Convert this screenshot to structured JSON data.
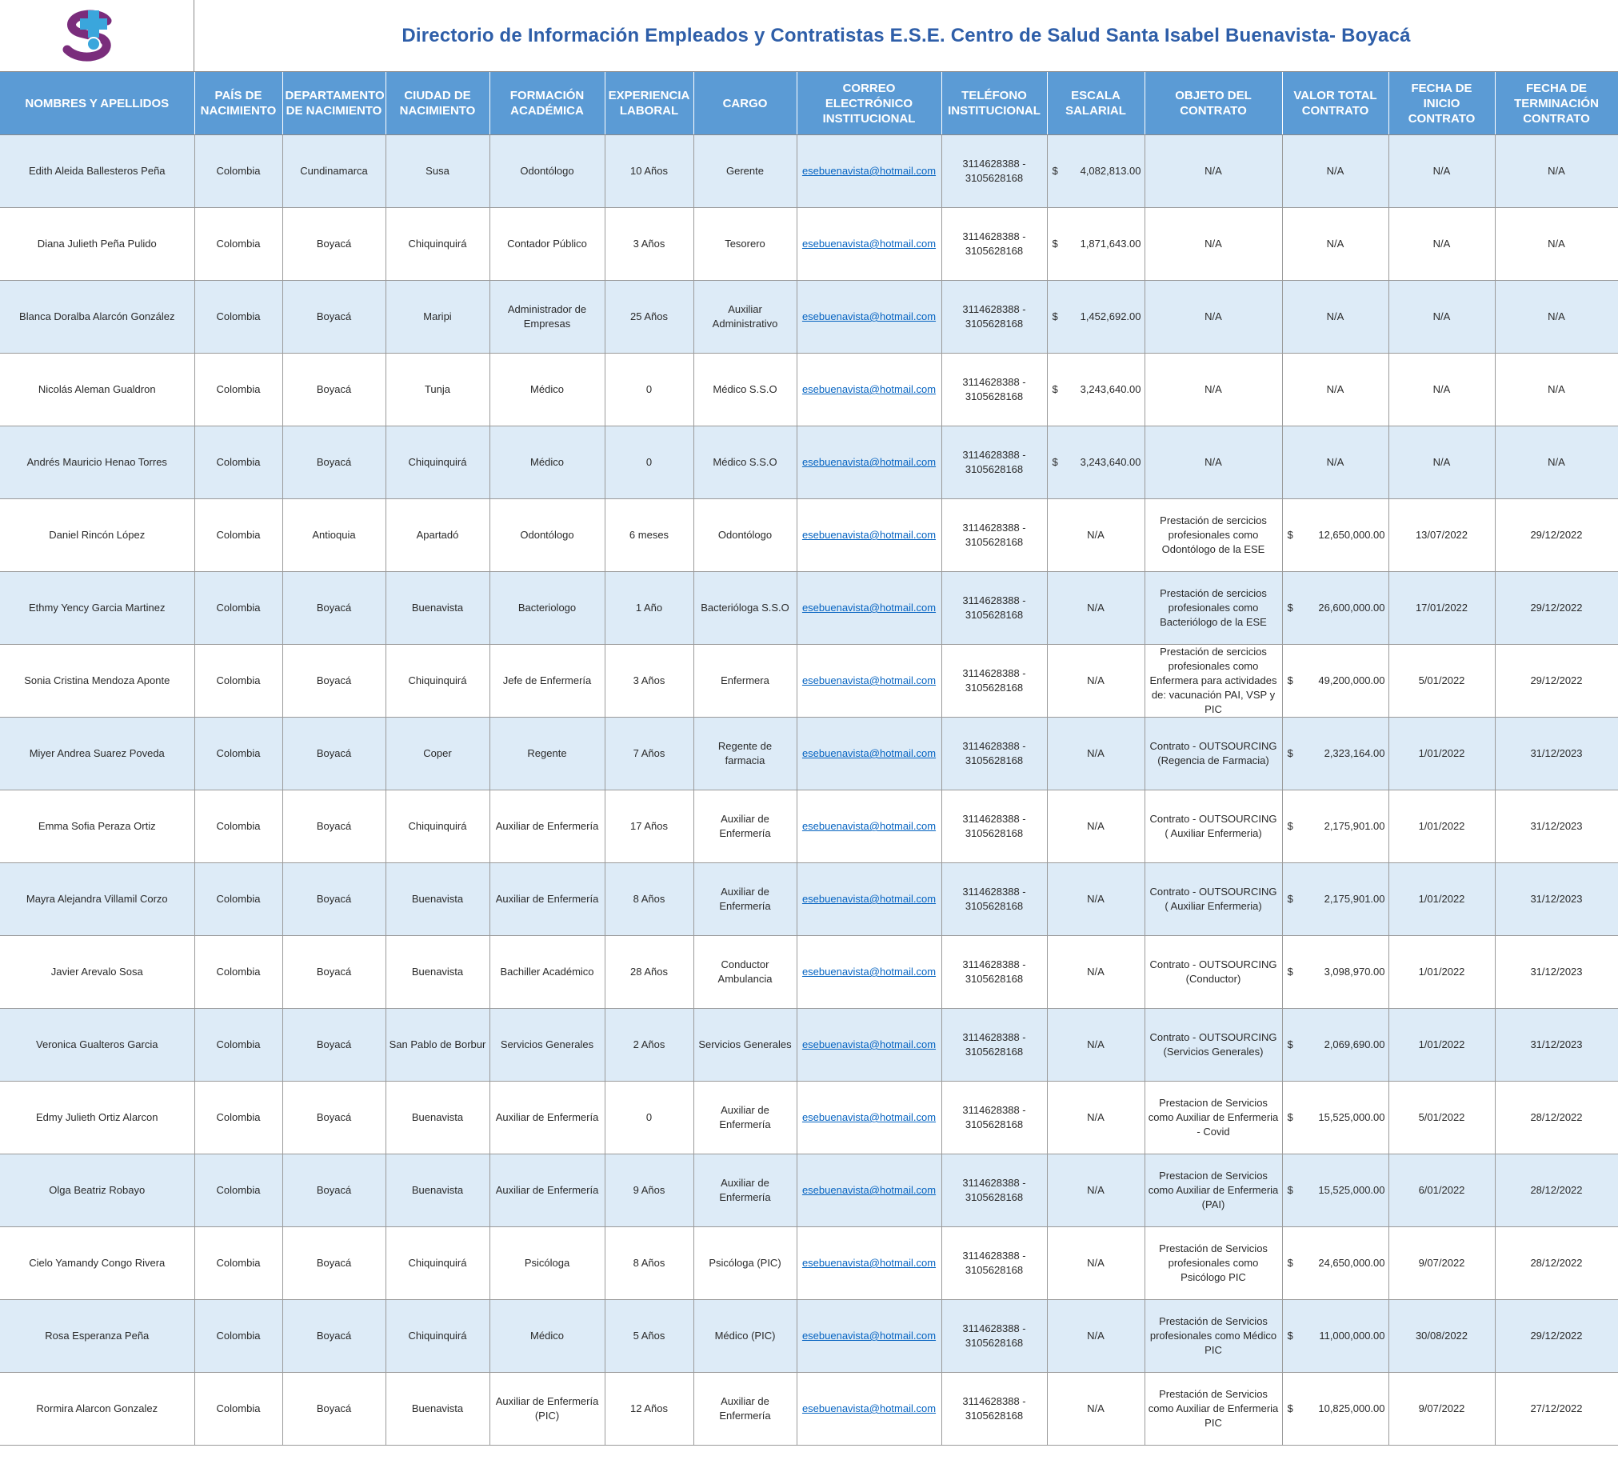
{
  "document": {
    "title": "Directorio de Información Empleados y Contratistas  E.S.E. Centro de Salud Santa Isabel Buenavista- Boyacá",
    "logo_icon": "medical-cross-logo-icon",
    "brand_colors": {
      "logo_purple": "#7a2d7c",
      "logo_blue": "#3aa6dc",
      "header_blue": "#5b9bd5",
      "title_blue": "#2e5ea8",
      "row_band": "#ddebf7",
      "link_blue": "#0563c1"
    }
  },
  "table": {
    "headers": [
      "NOMBRES Y APELLIDOS",
      "PAÍS  DE NACIMIENTO",
      "DEPARTAMENTO DE NACIMIENTO",
      "CIUDAD DE NACIMIENTO",
      "FORMACIÓN ACADÉMICA",
      "EXPERIENCIA LABORAL",
      "CARGO",
      "CORREO ELECTRÓNICO INSTITUCIONAL",
      "TELÉFONO INSTITUCIONAL",
      "ESCALA SALARIAL",
      "OBJETO DEL CONTRATO",
      "VALOR TOTAL CONTRATO",
      "FECHA DE INICIO CONTRATO",
      "FECHA DE TERMINACIÓN CONTRATO"
    ],
    "rows": [
      {
        "nombre": "Edith Aleida Ballesteros Peña",
        "pais": "Colombia",
        "departamento": "Cundinamarca",
        "ciudad": "Susa",
        "formacion": "Odontólogo",
        "experiencia": "10 Años",
        "cargo": "Gerente",
        "correo": "esebuenavista@hotmail.com",
        "telefono": "3114628388 - 3105628168",
        "escala_cur": "$",
        "escala": "4,082,813.00",
        "objeto": "N/A",
        "valor_cur": "",
        "valor": "N/A",
        "inicio": "N/A",
        "fin": "N/A"
      },
      {
        "nombre": "Diana Julieth Peña Pulido",
        "pais": "Colombia",
        "departamento": "Boyacá",
        "ciudad": "Chiquinquirá",
        "formacion": "Contador Público",
        "experiencia": "3 Años",
        "cargo": "Tesorero",
        "correo": "esebuenavista@hotmail.com",
        "telefono": "3114628388 - 3105628168",
        "escala_cur": "$",
        "escala": "1,871,643.00",
        "objeto": "N/A",
        "valor_cur": "",
        "valor": "N/A",
        "inicio": "N/A",
        "fin": "N/A"
      },
      {
        "nombre": "Blanca Doralba Alarcón González",
        "pais": "Colombia",
        "departamento": "Boyacá",
        "ciudad": "Maripi",
        "formacion": "Administrador  de Empresas",
        "experiencia": "25 Años",
        "cargo": "Auxiliar Administrativo",
        "correo": "esebuenavista@hotmail.com",
        "telefono": "3114628388 - 3105628168",
        "escala_cur": "$",
        "escala": "1,452,692.00",
        "objeto": "N/A",
        "valor_cur": "",
        "valor": "N/A",
        "inicio": "N/A",
        "fin": "N/A"
      },
      {
        "nombre": "Nicolás Aleman Gualdron",
        "pais": "Colombia",
        "departamento": "Boyacá",
        "ciudad": "Tunja",
        "formacion": "Médico",
        "experiencia": "0",
        "cargo": "Médico S.S.O",
        "correo": "esebuenavista@hotmail.com",
        "telefono": "3114628388 - 3105628168",
        "escala_cur": "$",
        "escala": "3,243,640.00",
        "objeto": "N/A",
        "valor_cur": "",
        "valor": "N/A",
        "inicio": "N/A",
        "fin": "N/A"
      },
      {
        "nombre": "Andrés Mauricio Henao Torres",
        "pais": "Colombia",
        "departamento": "Boyacá",
        "ciudad": "Chiquinquirá",
        "formacion": "Médico",
        "experiencia": "0",
        "cargo": "Médico S.S.O",
        "correo": "esebuenavista@hotmail.com",
        "telefono": "3114628388 - 3105628168",
        "escala_cur": "$",
        "escala": "3,243,640.00",
        "objeto": "N/A",
        "valor_cur": "",
        "valor": "N/A",
        "inicio": "N/A",
        "fin": "N/A"
      },
      {
        "nombre": "Daniel Rincón López",
        "pais": "Colombia",
        "departamento": "Antioquia",
        "ciudad": "Apartadó",
        "formacion": "Odontólogo",
        "experiencia": "6 meses",
        "cargo": "Odontólogo",
        "correo": "esebuenavista@hotmail.com",
        "telefono": "3114628388 - 3105628168",
        "escala_cur": "",
        "escala": "N/A",
        "objeto": "Prestación de sercicios profesionales como Odontólogo de la ESE",
        "valor_cur": "$",
        "valor": "12,650,000.00",
        "inicio": "13/07/2022",
        "fin": "29/12/2022"
      },
      {
        "nombre": "Ethmy Yency Garcia Martinez",
        "pais": "Colombia",
        "departamento": "Boyacá",
        "ciudad": "Buenavista",
        "formacion": "Bacteriologo",
        "experiencia": "1 Año",
        "cargo": "Bacterióloga S.S.O",
        "correo": "esebuenavista@hotmail.com",
        "telefono": "3114628388 - 3105628168",
        "escala_cur": "",
        "escala": "N/A",
        "objeto": "Prestación de sercicios profesionales como Bacteriólogo de la ESE",
        "valor_cur": "$",
        "valor": "26,600,000.00",
        "inicio": "17/01/2022",
        "fin": "29/12/2022"
      },
      {
        "nombre": "Sonia Cristina Mendoza Aponte",
        "pais": "Colombia",
        "departamento": "Boyacá",
        "ciudad": "Chiquinquirá",
        "formacion": "Jefe de Enfermería",
        "experiencia": "3 Años",
        "cargo": "Enfermera",
        "correo": "esebuenavista@hotmail.com",
        "telefono": "3114628388 - 3105628168",
        "escala_cur": "",
        "escala": "N/A",
        "objeto": "Prestación de sercicios profesionales como Enfermera para actividades de: vacunación PAI, VSP y PIC",
        "valor_cur": "$",
        "valor": "49,200,000.00",
        "inicio": "5/01/2022",
        "fin": "29/12/2022"
      },
      {
        "nombre": "Miyer Andrea Suarez Poveda",
        "pais": "Colombia",
        "departamento": "Boyacá",
        "ciudad": "Coper",
        "formacion": "Regente",
        "experiencia": "7 Años",
        "cargo": "Regente de farmacia",
        "correo": "esebuenavista@hotmail.com",
        "telefono": "3114628388 - 3105628168",
        "escala_cur": "",
        "escala": "N/A",
        "objeto": "Contrato - OUTSOURCING (Regencia de Farmacia)",
        "valor_cur": "$",
        "valor": "2,323,164.00",
        "inicio": "1/01/2022",
        "fin": "31/12/2023"
      },
      {
        "nombre": "Emma Sofia Peraza Ortiz",
        "pais": "Colombia",
        "departamento": "Boyacá",
        "ciudad": "Chiquinquirá",
        "formacion": "Auxiliar de Enfermería",
        "experiencia": "17 Años",
        "cargo": "Auxiliar de Enfermería",
        "correo": "esebuenavista@hotmail.com",
        "telefono": "3114628388 - 3105628168",
        "escala_cur": "",
        "escala": "N/A",
        "objeto": "Contrato - OUTSOURCING ( Auxiliar Enfermeria)",
        "valor_cur": "$",
        "valor": "2,175,901.00",
        "inicio": "1/01/2022",
        "fin": "31/12/2023"
      },
      {
        "nombre": "Mayra Alejandra Villamil Corzo",
        "pais": "Colombia",
        "departamento": "Boyacá",
        "ciudad": "Buenavista",
        "formacion": "Auxiliar de Enfermería",
        "experiencia": "8 Años",
        "cargo": "Auxiliar de Enfermería",
        "correo": "esebuenavista@hotmail.com",
        "telefono": "3114628388 - 3105628168",
        "escala_cur": "",
        "escala": "N/A",
        "objeto": "Contrato - OUTSOURCING ( Auxiliar Enfermeria)",
        "valor_cur": "$",
        "valor": "2,175,901.00",
        "inicio": "1/01/2022",
        "fin": "31/12/2023"
      },
      {
        "nombre": "Javier Arevalo Sosa",
        "pais": "Colombia",
        "departamento": "Boyacá",
        "ciudad": "Buenavista",
        "formacion": "Bachiller Académico",
        "experiencia": "28 Años",
        "cargo": "Conductor Ambulancia",
        "correo": "esebuenavista@hotmail.com",
        "telefono": "3114628388 - 3105628168",
        "escala_cur": "",
        "escala": "N/A",
        "objeto": "Contrato - OUTSOURCING (Conductor)",
        "valor_cur": "$",
        "valor": "3,098,970.00",
        "inicio": "1/01/2022",
        "fin": "31/12/2023"
      },
      {
        "nombre": "Veronica Gualteros Garcia",
        "pais": "Colombia",
        "departamento": "Boyacá",
        "ciudad": "San Pablo de Borbur",
        "formacion": "Servicios Generales",
        "experiencia": "2 Años",
        "cargo": "Servicios Generales",
        "correo": "esebuenavista@hotmail.com",
        "telefono": "3114628388 - 3105628168",
        "escala_cur": "",
        "escala": "N/A",
        "objeto": "Contrato - OUTSOURCING (Servicios Generales)",
        "valor_cur": "$",
        "valor": "2,069,690.00",
        "inicio": "1/01/2022",
        "fin": "31/12/2023"
      },
      {
        "nombre": "Edmy Julieth Ortiz Alarcon",
        "pais": "Colombia",
        "departamento": "Boyacá",
        "ciudad": "Buenavista",
        "formacion": "Auxiliar de Enfermería",
        "experiencia": "0",
        "cargo": "Auxiliar de Enfermería",
        "correo": "esebuenavista@hotmail.com",
        "telefono": "3114628388 - 3105628168",
        "escala_cur": "",
        "escala": "N/A",
        "objeto": "Prestacion de Servicios como Auxiliar de Enfermeria - Covid",
        "valor_cur": "$",
        "valor": "15,525,000.00",
        "inicio": "5/01/2022",
        "fin": "28/12/2022"
      },
      {
        "nombre": "Olga Beatriz Robayo",
        "pais": "Colombia",
        "departamento": "Boyacá",
        "ciudad": "Buenavista",
        "formacion": "Auxiliar de Enfermería",
        "experiencia": "9 Años",
        "cargo": "Auxiliar de Enfermería",
        "correo": "esebuenavista@hotmail.com",
        "telefono": "3114628388 - 3105628168",
        "escala_cur": "",
        "escala": "N/A",
        "objeto": "Prestacion de Servicios como Auxiliar de Enfermeria (PAI)",
        "valor_cur": "$",
        "valor": "15,525,000.00",
        "inicio": "6/01/2022",
        "fin": "28/12/2022"
      },
      {
        "nombre": "Cielo Yamandy Congo Rivera",
        "pais": "Colombia",
        "departamento": "Boyacá",
        "ciudad": "Chiquinquirá",
        "formacion": "Psicóloga",
        "experiencia": "8 Años",
        "cargo": "Psicóloga (PIC)",
        "correo": "esebuenavista@hotmail.com",
        "telefono": "3114628388 - 3105628168",
        "escala_cur": "",
        "escala": "N/A",
        "objeto": "Prestación de Servicios profesionales como Psicólogo PIC",
        "valor_cur": "$",
        "valor": "24,650,000.00",
        "inicio": "9/07/2022",
        "fin": "28/12/2022"
      },
      {
        "nombre": "Rosa Esperanza Peña",
        "pais": "Colombia",
        "departamento": "Boyacá",
        "ciudad": "Chiquinquirá",
        "formacion": "Médico",
        "experiencia": "5 Años",
        "cargo": "Médico (PIC)",
        "correo": "esebuenavista@hotmail.com",
        "telefono": "3114628388 - 3105628168",
        "escala_cur": "",
        "escala": "N/A",
        "objeto": "Prestación de Servicios profesionales como Médico PIC",
        "valor_cur": "$",
        "valor": "11,000,000.00",
        "inicio": "30/08/2022",
        "fin": "29/12/2022"
      },
      {
        "nombre": "Rormira Alarcon Gonzalez",
        "pais": "Colombia",
        "departamento": "Boyacá",
        "ciudad": "Buenavista",
        "formacion": "Auxiliar de Enfermería (PIC)",
        "experiencia": "12 Años",
        "cargo": "Auxiliar de Enfermería",
        "correo": "esebuenavista@hotmail.com",
        "telefono": "3114628388 - 3105628168",
        "escala_cur": "",
        "escala": "N/A",
        "objeto": "Prestación de Servicios como Auxiliar de Enfermeria PIC",
        "valor_cur": "$",
        "valor": "10,825,000.00",
        "inicio": "9/07/2022",
        "fin": "27/12/2022"
      }
    ]
  }
}
